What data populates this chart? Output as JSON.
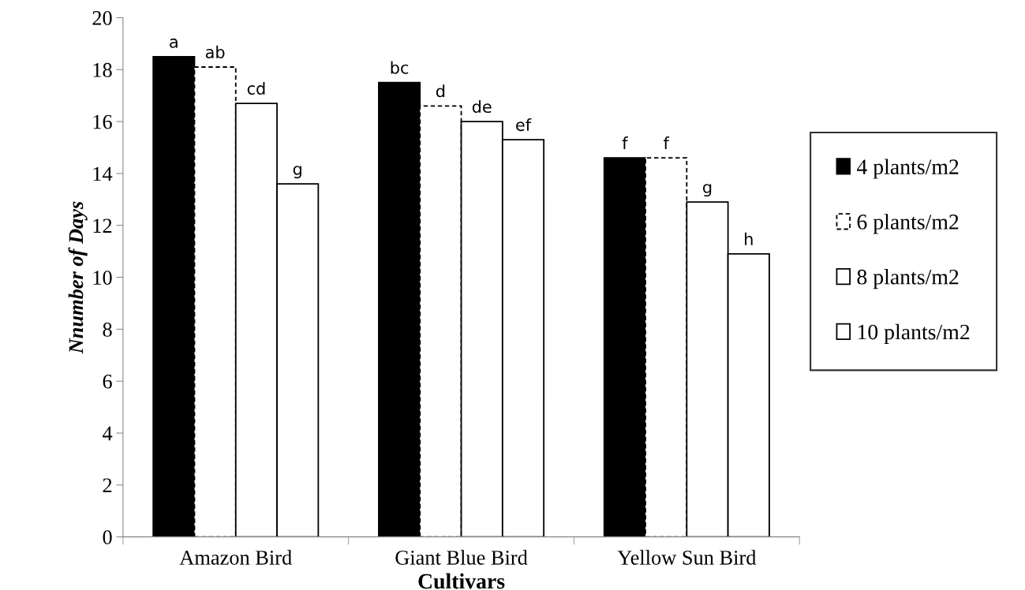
{
  "chart_data": {
    "type": "bar",
    "xlabel": "Cultivars",
    "ylabel": "Nnumber of Days",
    "categories": [
      "Amazon Bird",
      "Giant Blue Bird",
      "Yellow Sun Bird"
    ],
    "series": [
      {
        "name": "4 plants/m2",
        "color": "#000000",
        "line_style": "solid",
        "values": [
          18.5,
          17.5,
          14.6
        ],
        "value_labels": [
          "a",
          "bc",
          "f"
        ]
      },
      {
        "name": "6 plants/m2",
        "color": "#ffffff",
        "line_style": "dashed",
        "values": [
          18.1,
          16.6,
          14.6
        ],
        "value_labels": [
          "ab",
          "d",
          "f"
        ]
      },
      {
        "name": "8 plants/m2",
        "color": "#ffffff",
        "line_style": "solid",
        "values": [
          16.7,
          16.0,
          12.9
        ],
        "value_labels": [
          "cd",
          "de",
          "g"
        ]
      },
      {
        "name": "10 plants/m2",
        "color": "#ffffff",
        "line_style": "solid",
        "values": [
          13.6,
          15.3,
          10.9
        ],
        "value_labels": [
          "g",
          "ef",
          "h"
        ]
      }
    ],
    "ylim": [
      0,
      20
    ],
    "yticks": [
      0,
      2,
      4,
      6,
      8,
      10,
      12,
      14,
      16,
      18,
      20
    ],
    "legend": "right",
    "grid": false
  }
}
